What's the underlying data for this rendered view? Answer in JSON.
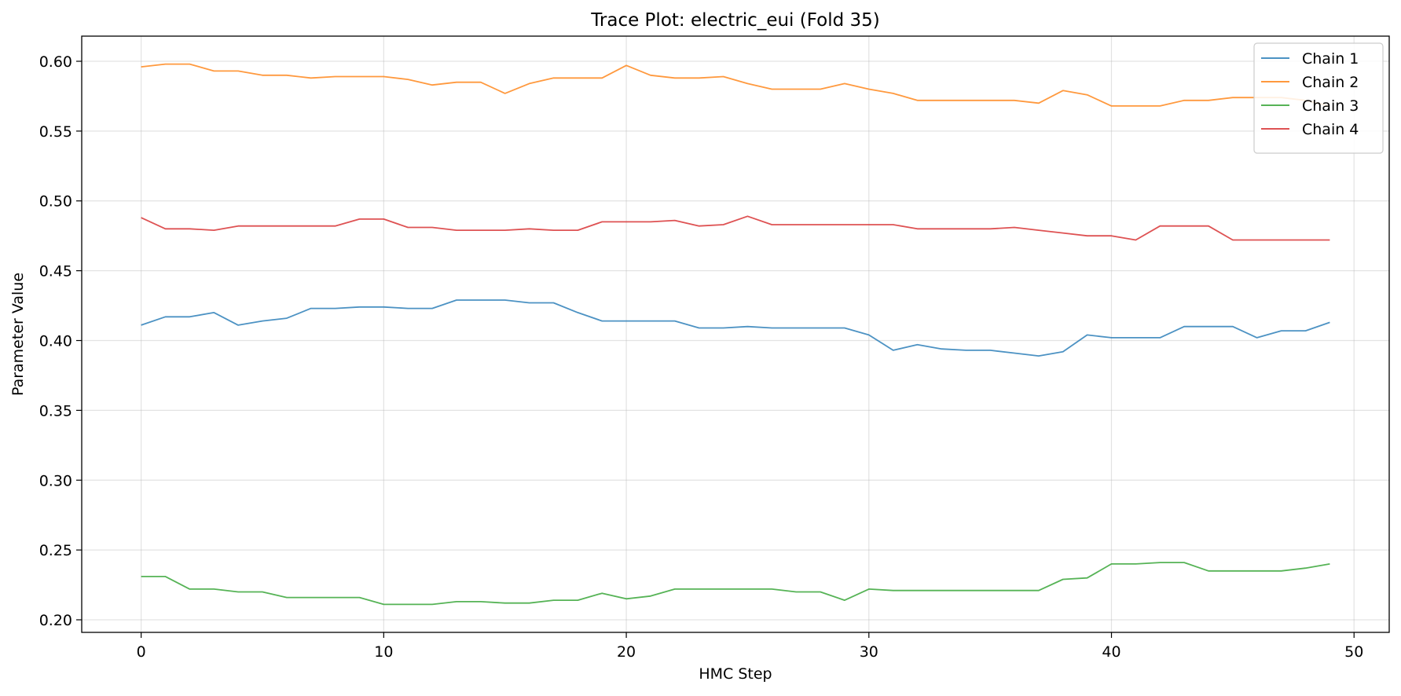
{
  "chart_data": {
    "type": "line",
    "title": "Trace Plot: electric_eui (Fold 35)",
    "xlabel": "HMC Step",
    "ylabel": "Parameter Value",
    "xlim": [
      -2.45,
      51.45
    ],
    "ylim": [
      0.191,
      0.618
    ],
    "xticks": [
      0,
      10,
      20,
      30,
      40,
      50
    ],
    "yticks": [
      0.2,
      0.25,
      0.3,
      0.35,
      0.4,
      0.45,
      0.5,
      0.55,
      0.6
    ],
    "grid": true,
    "legend_position": "top-right",
    "x": [
      0,
      1,
      2,
      3,
      4,
      5,
      6,
      7,
      8,
      9,
      10,
      11,
      12,
      13,
      14,
      15,
      16,
      17,
      18,
      19,
      20,
      21,
      22,
      23,
      24,
      25,
      26,
      27,
      28,
      29,
      30,
      31,
      32,
      33,
      34,
      35,
      36,
      37,
      38,
      39,
      40,
      41,
      42,
      43,
      44,
      45,
      46,
      47,
      48,
      49
    ],
    "series": [
      {
        "name": "Chain 1",
        "color": "#1f77b4",
        "values": [
          0.411,
          0.417,
          0.417,
          0.42,
          0.411,
          0.414,
          0.416,
          0.423,
          0.423,
          0.424,
          0.424,
          0.423,
          0.423,
          0.429,
          0.429,
          0.429,
          0.427,
          0.427,
          0.42,
          0.414,
          0.414,
          0.414,
          0.414,
          0.409,
          0.409,
          0.41,
          0.409,
          0.409,
          0.409,
          0.409,
          0.404,
          0.393,
          0.397,
          0.394,
          0.393,
          0.393,
          0.391,
          0.389,
          0.392,
          0.404,
          0.402,
          0.402,
          0.402,
          0.41,
          0.41,
          0.41,
          0.402,
          0.407,
          0.407,
          0.413
        ]
      },
      {
        "name": "Chain 2",
        "color": "#ff7f0e",
        "values": [
          0.596,
          0.598,
          0.598,
          0.593,
          0.593,
          0.59,
          0.59,
          0.588,
          0.589,
          0.589,
          0.589,
          0.587,
          0.583,
          0.585,
          0.585,
          0.577,
          0.584,
          0.588,
          0.588,
          0.588,
          0.597,
          0.59,
          0.588,
          0.588,
          0.589,
          0.584,
          0.58,
          0.58,
          0.58,
          0.584,
          0.58,
          0.577,
          0.572,
          0.572,
          0.572,
          0.572,
          0.572,
          0.57,
          0.579,
          0.576,
          0.568,
          0.568,
          0.568,
          0.572,
          0.572,
          0.574,
          0.574,
          0.574,
          0.572,
          0.568
        ]
      },
      {
        "name": "Chain 3",
        "color": "#2ca02c",
        "values": [
          0.231,
          0.231,
          0.222,
          0.222,
          0.22,
          0.22,
          0.216,
          0.216,
          0.216,
          0.216,
          0.211,
          0.211,
          0.211,
          0.213,
          0.213,
          0.212,
          0.212,
          0.214,
          0.214,
          0.219,
          0.215,
          0.217,
          0.222,
          0.222,
          0.222,
          0.222,
          0.222,
          0.22,
          0.22,
          0.214,
          0.222,
          0.221,
          0.221,
          0.221,
          0.221,
          0.221,
          0.221,
          0.221,
          0.229,
          0.23,
          0.24,
          0.24,
          0.241,
          0.241,
          0.235,
          0.235,
          0.235,
          0.235,
          0.237,
          0.24
        ]
      },
      {
        "name": "Chain 4",
        "color": "#d62728",
        "values": [
          0.488,
          0.48,
          0.48,
          0.479,
          0.482,
          0.482,
          0.482,
          0.482,
          0.482,
          0.487,
          0.487,
          0.481,
          0.481,
          0.479,
          0.479,
          0.479,
          0.48,
          0.479,
          0.479,
          0.485,
          0.485,
          0.485,
          0.486,
          0.482,
          0.483,
          0.489,
          0.483,
          0.483,
          0.483,
          0.483,
          0.483,
          0.483,
          0.48,
          0.48,
          0.48,
          0.48,
          0.481,
          0.479,
          0.477,
          0.475,
          0.475,
          0.472,
          0.482,
          0.482,
          0.482,
          0.472,
          0.472,
          0.472,
          0.472,
          0.472
        ]
      }
    ]
  }
}
